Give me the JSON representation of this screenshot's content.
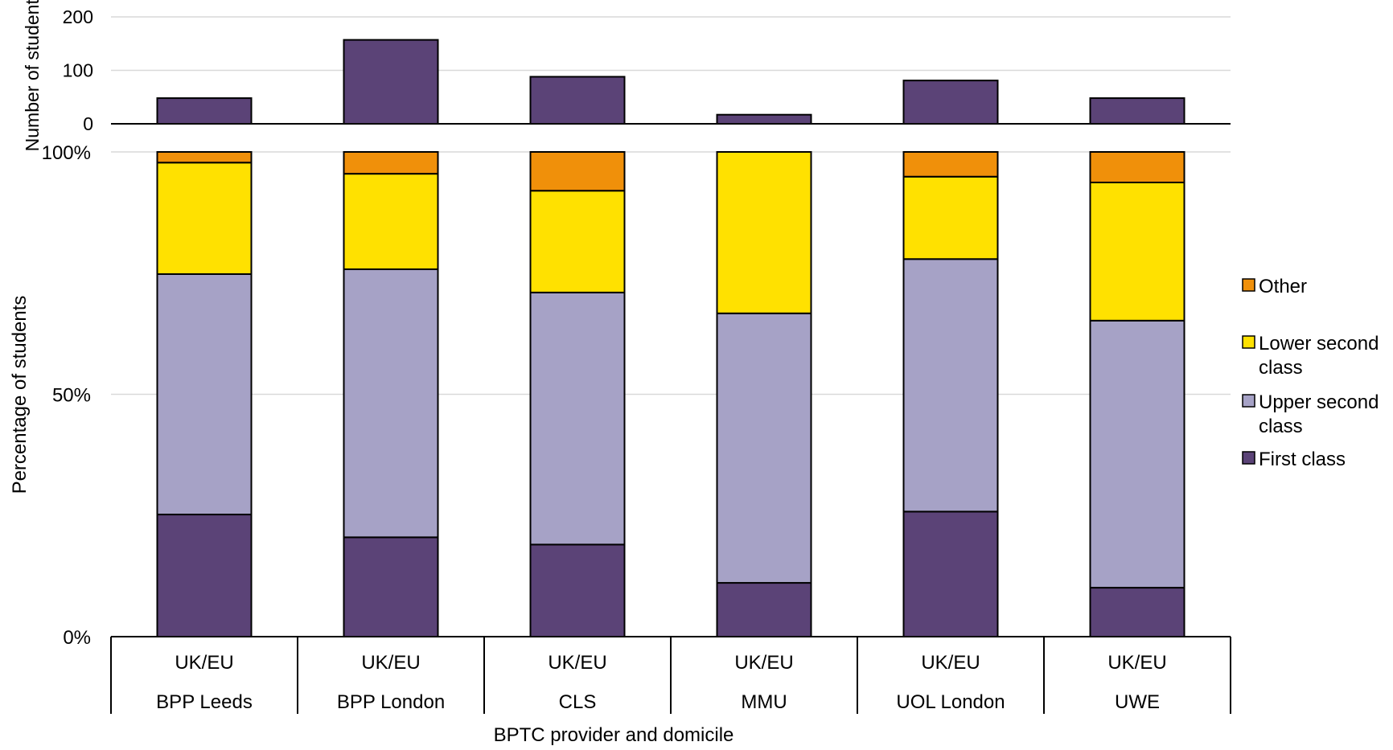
{
  "chart_data": [
    {
      "type": "bar",
      "panel": "top",
      "ylabel": "Number of students",
      "ylim": [
        0,
        200
      ],
      "yticks": [
        "0",
        "100",
        "200"
      ],
      "grid": true,
      "categories": [
        "BPP Leeds",
        "BPP London",
        "CLS",
        "MMU",
        "UOL London",
        "UWE"
      ],
      "domicile": [
        "UK/EU",
        "UK/EU",
        "UK/EU",
        "UK/EU",
        "UK/EU",
        "UK/EU"
      ],
      "values": [
        48,
        157,
        88,
        17,
        81,
        48
      ],
      "color": "#5B4377"
    },
    {
      "type": "bar",
      "stacked": true,
      "panel": "bottom",
      "ylabel": "Percentage of students",
      "ylim": [
        0,
        100
      ],
      "yticks": [
        "0%",
        "50%",
        "100%"
      ],
      "grid": true,
      "xlabel": "BPTC provider and domicile",
      "categories": [
        "BPP Leeds",
        "BPP London",
        "CLS",
        "MMU",
        "UOL London",
        "UWE"
      ],
      "domicile": [
        "UK/EU",
        "UK/EU",
        "UK/EU",
        "UK/EU",
        "UK/EU",
        "UK/EU"
      ],
      "series": [
        {
          "name": "First class",
          "color": "#5B4377",
          "values": [
            25.2,
            20.5,
            19.0,
            11.1,
            25.8,
            10.1
          ]
        },
        {
          "name": "Upper second class",
          "color": "#A6A2C6",
          "values": [
            49.6,
            55.3,
            52.0,
            55.6,
            52.1,
            55.1
          ]
        },
        {
          "name": "Lower second class",
          "color": "#FFE100",
          "values": [
            23.0,
            19.7,
            21.0,
            33.3,
            17.0,
            28.5
          ]
        },
        {
          "name": "Other",
          "color": "#F0900A",
          "values": [
            2.2,
            4.5,
            8.0,
            0.0,
            5.1,
            6.3
          ]
        }
      ],
      "legend": {
        "position": "right",
        "order": [
          "Other",
          "Lower second class",
          "Upper second class",
          "First class"
        ],
        "lines": {
          "Other": [
            "Other"
          ],
          "Lower second class": [
            "Lower second",
            "class"
          ],
          "Upper second class": [
            "Upper second",
            "class"
          ],
          "First class": [
            "First class"
          ]
        }
      }
    }
  ]
}
